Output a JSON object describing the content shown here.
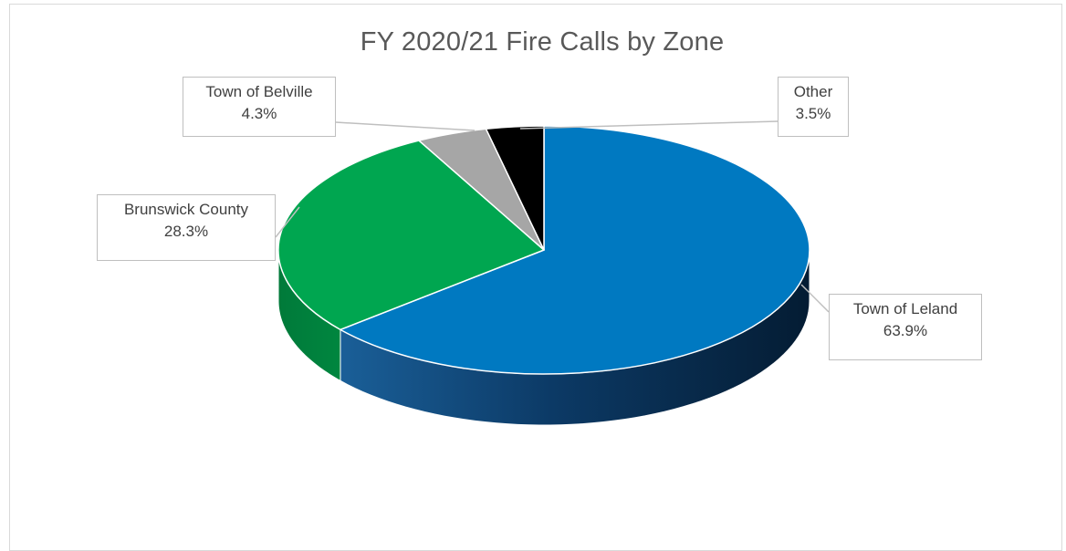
{
  "chart_data": {
    "type": "pie",
    "title": "FY 2020/21 Fire Calls by Zone",
    "slices": [
      {
        "label": "Town of Leland",
        "value": 63.9,
        "value_label": "63.9%",
        "color": "#0079c1"
      },
      {
        "label": "Brunswick County",
        "value": 28.3,
        "value_label": "28.3%",
        "color": "#00a650"
      },
      {
        "label": "Town of Belville",
        "value": 4.3,
        "value_label": "4.3%",
        "color": "#a6a6a6"
      },
      {
        "label": "Other",
        "value": 3.5,
        "value_label": "3.5%",
        "color": "#000000"
      }
    ],
    "style": "3d",
    "legend": "none",
    "data_labels": "callouts"
  }
}
